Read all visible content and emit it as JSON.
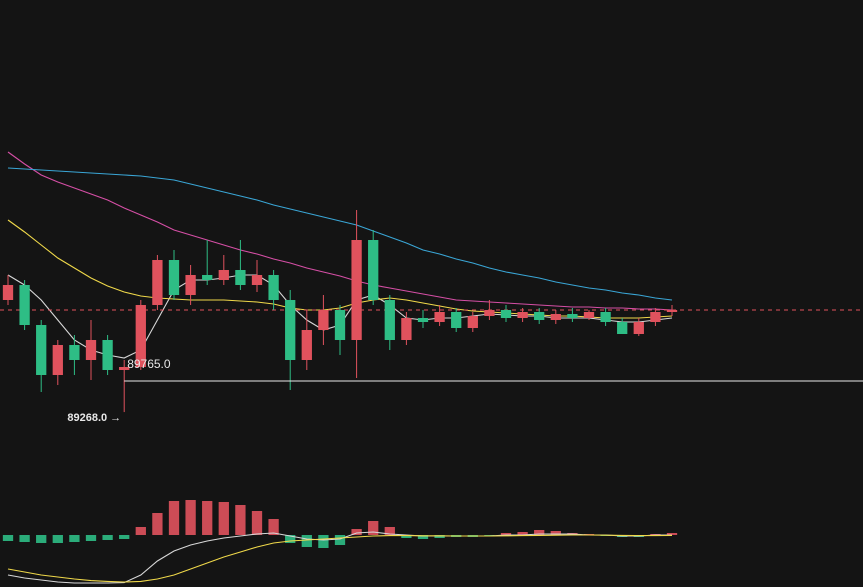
{
  "chart_data": {
    "type": "candlestick",
    "up_color": "#e0525d",
    "down_color": "#2ebd85",
    "background": "#141414",
    "ylim": [
      88661,
      95861
    ],
    "open": [
      91061,
      91301,
      90661,
      89861,
      90341,
      90101,
      90421,
      89941,
      89989,
      90981,
      91701,
      91141,
      91461,
      91381,
      91541,
      91301,
      91461,
      91061,
      90101,
      90581,
      90901,
      90421,
      92021,
      91061,
      90421,
      90773,
      90709,
      90869,
      90613,
      90805,
      90901,
      90773,
      90869,
      90741,
      90837,
      90773,
      90869,
      90709,
      90517,
      90709,
      90869
    ],
    "high": [
      91461,
      91381,
      90741,
      90421,
      90501,
      90741,
      90501,
      90101,
      91061,
      91781,
      91861,
      91621,
      92021,
      91781,
      92021,
      91701,
      91541,
      91221,
      90901,
      91141,
      90981,
      92501,
      92181,
      91141,
      90869,
      90901,
      90981,
      90933,
      90869,
      91061,
      90981,
      90933,
      90933,
      90901,
      90933,
      90901,
      90933,
      90773,
      90773,
      90933,
      90981
    ],
    "low": [
      90981,
      90581,
      89589,
      89701,
      89861,
      89781,
      89861,
      89268,
      89941,
      90901,
      91061,
      90981,
      91301,
      91301,
      91221,
      91189,
      90901,
      89621,
      89941,
      90341,
      90181,
      89813,
      90981,
      90261,
      90341,
      90613,
      90645,
      90549,
      90549,
      90741,
      90709,
      90709,
      90677,
      90677,
      90709,
      90741,
      90645,
      90517,
      90485,
      90645,
      90805
    ],
    "close": [
      91301,
      90661,
      89861,
      90341,
      90101,
      90421,
      89941,
      89989,
      90981,
      91701,
      91141,
      91461,
      91381,
      91541,
      91301,
      91461,
      91061,
      90101,
      90581,
      90901,
      90421,
      92021,
      91061,
      90421,
      90773,
      90709,
      90869,
      90613,
      90805,
      90901,
      90773,
      90869,
      90741,
      90837,
      90773,
      90869,
      90709,
      90517,
      90709,
      90869,
      90901
    ],
    "moving_averages": [
      {
        "color": "#d8d8d8",
        "values": [
          91461,
          91301,
          91061,
          90741,
          90421,
          90261,
          90181,
          90133,
          90261,
          90741,
          91221,
          91381,
          91381,
          91413,
          91461,
          91461,
          91301,
          90981,
          90741,
          90581,
          90661,
          91061,
          91141,
          90981,
          90773,
          90741,
          90773,
          90773,
          90805,
          90837,
          90821,
          90805,
          90805,
          90773,
          90773,
          90773,
          90741,
          90709,
          90709,
          90741,
          90773
        ]
      },
      {
        "color": "#f0d94a",
        "values": [
          92341,
          92149,
          91941,
          91733,
          91573,
          91413,
          91285,
          91189,
          91125,
          91093,
          91077,
          91061,
          91061,
          91061,
          91045,
          91029,
          90997,
          90933,
          90901,
          90901,
          90933,
          91013,
          91061,
          91093,
          91061,
          91013,
          90965,
          90917,
          90885,
          90869,
          90853,
          90837,
          90821,
          90805,
          90805,
          90789,
          90773,
          90773,
          90773,
          90789,
          90805
        ]
      },
      {
        "color": "#d64fa6",
        "values": [
          93429,
          93237,
          93061,
          92949,
          92853,
          92757,
          92661,
          92533,
          92421,
          92309,
          92181,
          92101,
          92021,
          91941,
          91861,
          91797,
          91717,
          91653,
          91573,
          91509,
          91445,
          91365,
          91301,
          91253,
          91205,
          91157,
          91109,
          91061,
          91045,
          91029,
          91013,
          90997,
          90981,
          90965,
          90949,
          90949,
          90933,
          90933,
          90917,
          90917,
          90901
        ]
      },
      {
        "color": "#3aa6d6",
        "values": [
          93173,
          93157,
          93141,
          93125,
          93109,
          93093,
          93077,
          93061,
          93045,
          93013,
          92981,
          92917,
          92853,
          92789,
          92725,
          92661,
          92581,
          92517,
          92453,
          92389,
          92325,
          92261,
          92165,
          92069,
          91973,
          91861,
          91797,
          91717,
          91653,
          91573,
          91509,
          91461,
          91413,
          91349,
          91301,
          91253,
          91221,
          91173,
          91141,
          91093,
          91061
        ]
      }
    ],
    "annotations": [
      {
        "value": 89765,
        "label": "89765.0"
      },
      {
        "value": 89268,
        "label": "89268.0 →"
      }
    ],
    "macd": {
      "ylim": [
        -260,
        400
      ],
      "hist": [
        -30,
        -35,
        -40,
        -40,
        -35,
        -30,
        -25,
        -20,
        40,
        110,
        170,
        175,
        170,
        165,
        150,
        120,
        80,
        -40,
        -60,
        -65,
        -50,
        30,
        70,
        40,
        -15,
        -20,
        -15,
        -10,
        -10,
        -5,
        10,
        15,
        25,
        20,
        10,
        5,
        -5,
        -10,
        -10,
        5,
        10
      ],
      "dif": {
        "color": "#d8d8d8",
        "values": [
          -200,
          -215,
          -225,
          -235,
          -240,
          -240,
          -240,
          -238,
          -200,
          -130,
          -80,
          -50,
          -30,
          -15,
          -5,
          5,
          10,
          -5,
          -20,
          -25,
          -20,
          10,
          15,
          5,
          0,
          -5,
          -5,
          -5,
          -5,
          -5,
          0,
          0,
          5,
          5,
          5,
          0,
          0,
          -5,
          -5,
          0,
          0
        ]
      },
      "dea": {
        "color": "#f0d94a",
        "values": [
          -170,
          -185,
          -200,
          -210,
          -220,
          -228,
          -232,
          -235,
          -232,
          -220,
          -200,
          -170,
          -140,
          -110,
          -85,
          -60,
          -40,
          -30,
          -25,
          -20,
          -15,
          -10,
          -5,
          -3,
          -3,
          -4,
          -4,
          -5,
          -5,
          -5,
          -4,
          -3,
          -2,
          -1,
          0,
          0,
          -1,
          -2,
          -3,
          -3,
          -2
        ]
      }
    }
  }
}
